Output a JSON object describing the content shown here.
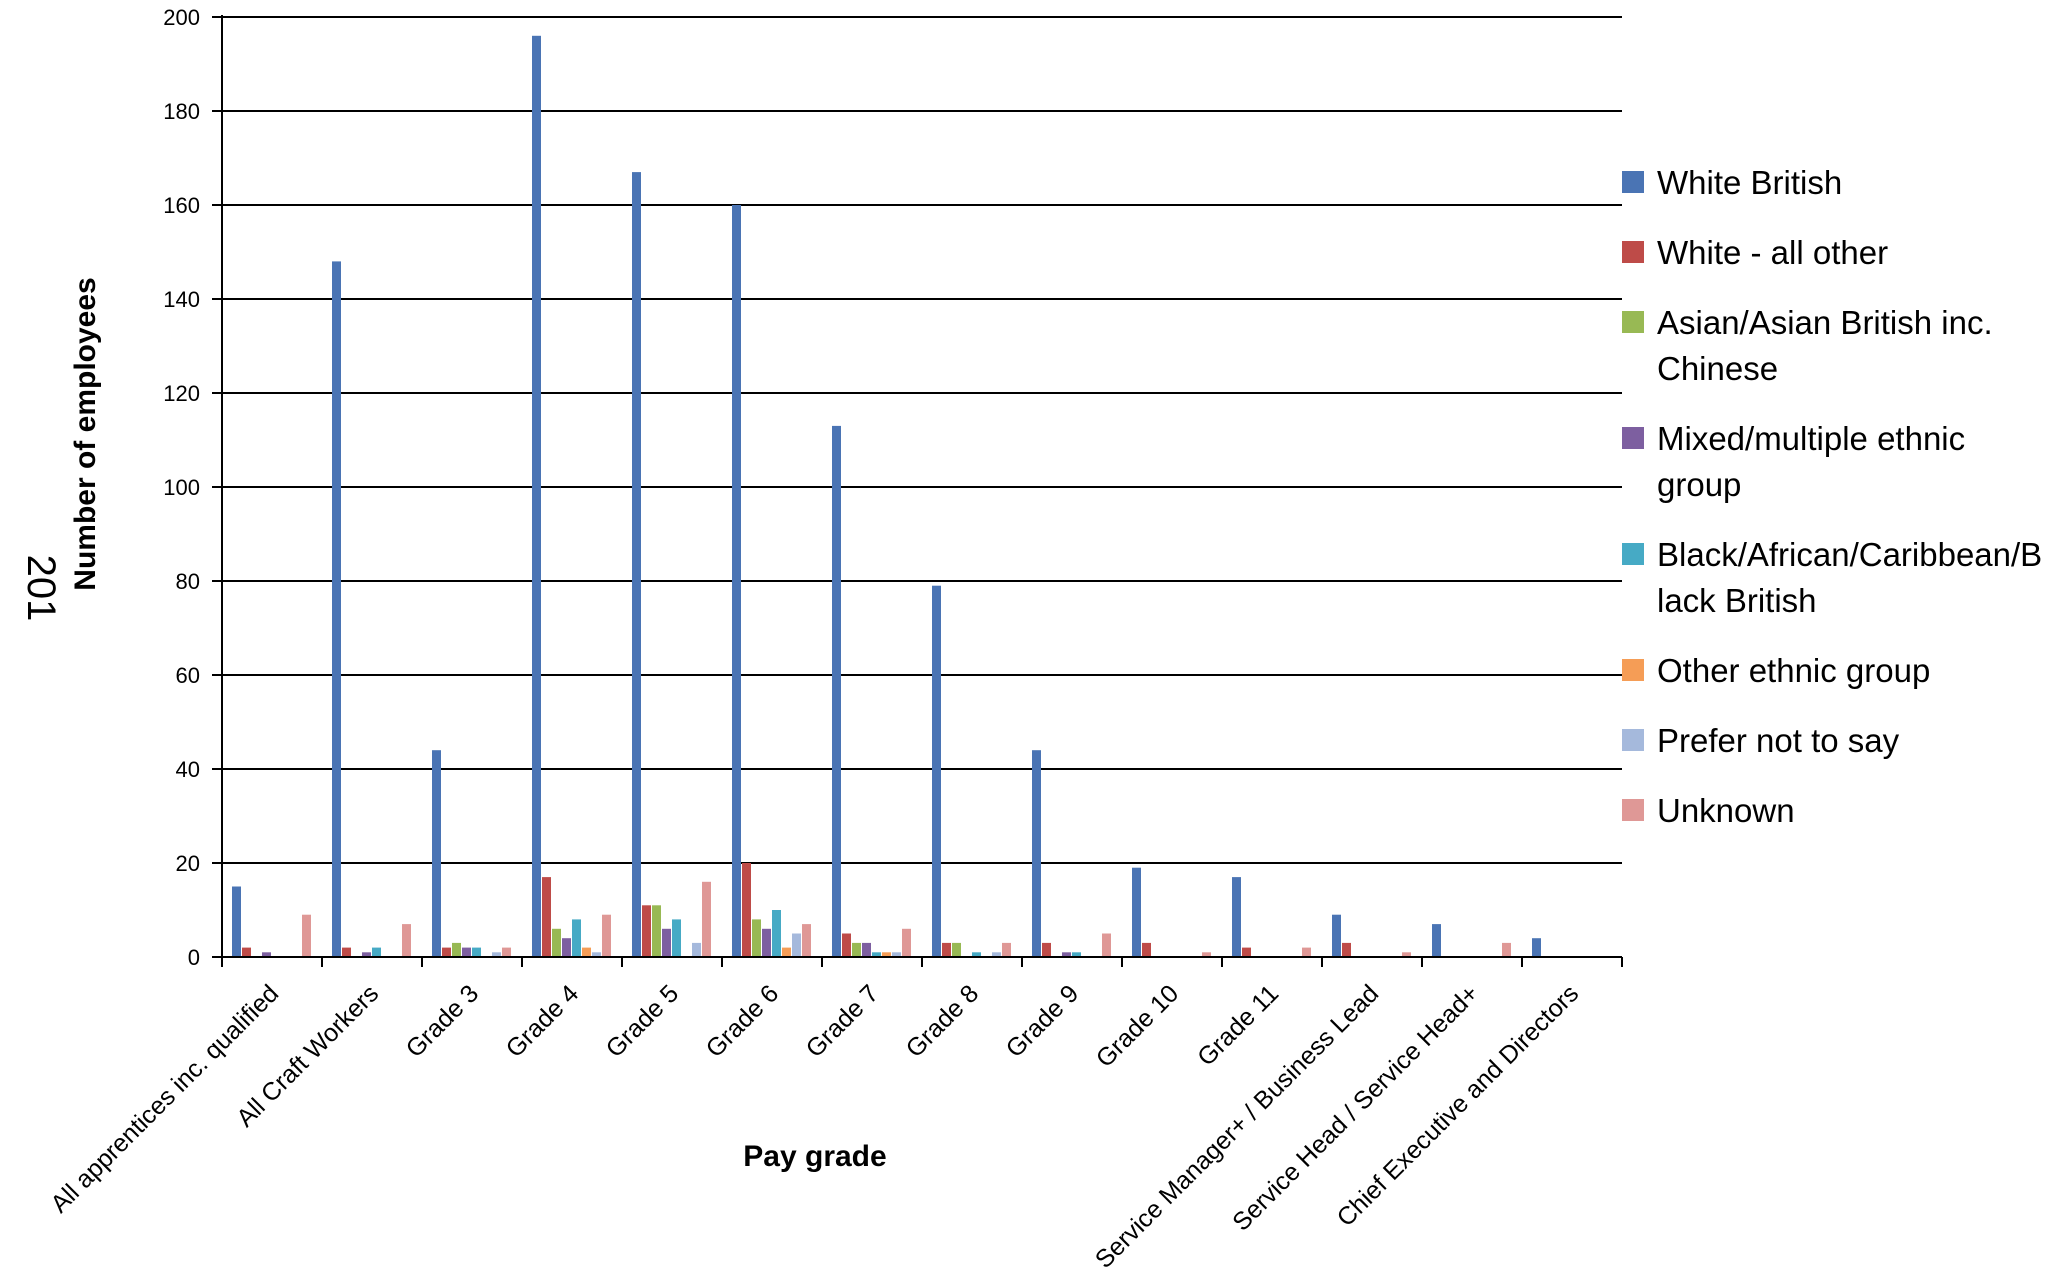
{
  "page_number": "201",
  "chart_data": {
    "type": "bar",
    "title": "",
    "xlabel": "Pay grade",
    "ylabel": "Number of employees",
    "ylim": [
      0,
      200
    ],
    "yticks": [
      0,
      20,
      40,
      60,
      80,
      100,
      120,
      140,
      160,
      180,
      200
    ],
    "grid": true,
    "legend_position": "right",
    "categories": [
      "All apprentices inc. qualified",
      "All Craft Workers",
      "Grade 3",
      "Grade 4",
      "Grade 5",
      "Grade 6",
      "Grade 7",
      "Grade 8",
      "Grade 9",
      "Grade 10",
      "Grade 11",
      "Service Manager+ / Business Lead",
      "Service Head / Service Head+",
      "Chief Executive and Directors"
    ],
    "series": [
      {
        "name": "White British",
        "legend_lines": [
          "White British"
        ],
        "color": "#4a74b4",
        "values": [
          15,
          148,
          44,
          196,
          167,
          160,
          113,
          79,
          44,
          19,
          17,
          9,
          7,
          4
        ]
      },
      {
        "name": "White - all other",
        "legend_lines": [
          "White - all other"
        ],
        "color": "#be4b48",
        "values": [
          2,
          2,
          2,
          17,
          11,
          20,
          5,
          3,
          3,
          3,
          2,
          3,
          0,
          0
        ]
      },
      {
        "name": "Asian/Asian British inc. Chinese",
        "legend_lines": [
          "Asian/Asian British inc.",
          "Chinese"
        ],
        "color": "#98b954",
        "values": [
          0,
          0,
          3,
          6,
          11,
          8,
          3,
          3,
          0,
          0,
          0,
          0,
          0,
          0
        ]
      },
      {
        "name": "Mixed/multiple ethnic group",
        "legend_lines": [
          "Mixed/multiple ethnic",
          "group"
        ],
        "color": "#7d5fa0",
        "values": [
          1,
          1,
          2,
          4,
          6,
          6,
          3,
          0,
          1,
          0,
          0,
          0,
          0,
          0
        ]
      },
      {
        "name": "Black/African/Caribbean/Black British",
        "legend_lines": [
          "Black/African/Caribbean/B",
          "lack British"
        ],
        "color": "#46aac5",
        "values": [
          0,
          2,
          2,
          8,
          8,
          10,
          1,
          1,
          1,
          0,
          0,
          0,
          0,
          0
        ]
      },
      {
        "name": "Other ethnic group",
        "legend_lines": [
          "Other ethnic group"
        ],
        "color": "#f59d56",
        "values": [
          0,
          0,
          0,
          2,
          0,
          2,
          1,
          0,
          0,
          0,
          0,
          0,
          0,
          0
        ]
      },
      {
        "name": "Prefer not to say",
        "legend_lines": [
          "Prefer not to say"
        ],
        "color": "#a5b9dc",
        "values": [
          0,
          0,
          1,
          1,
          3,
          5,
          1,
          1,
          0,
          0,
          0,
          0,
          0,
          0
        ]
      },
      {
        "name": "Unknown",
        "legend_lines": [
          "Unknown"
        ],
        "color": "#df9896",
        "values": [
          9,
          7,
          2,
          9,
          16,
          7,
          6,
          3,
          5,
          1,
          2,
          1,
          3,
          0
        ]
      }
    ]
  }
}
